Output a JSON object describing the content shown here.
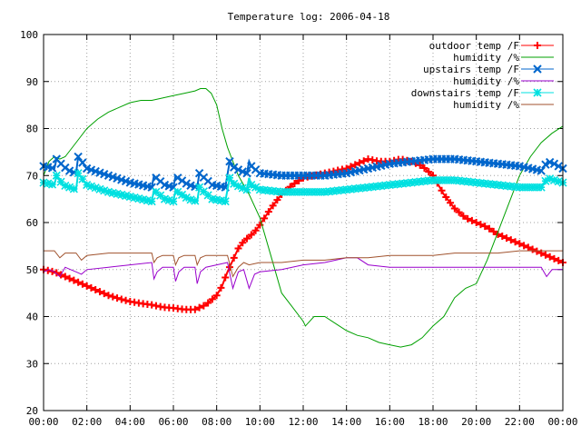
{
  "chart_data": {
    "type": "line",
    "title": "Temperature log: 2006-04-18",
    "xlabel": "",
    "ylabel": "",
    "x_unit": "hours",
    "xlim": [
      0,
      24
    ],
    "ylim": [
      20,
      100
    ],
    "xtick_values": [
      0,
      2,
      4,
      6,
      8,
      10,
      12,
      14,
      16,
      18,
      20,
      22,
      24
    ],
    "xtick_labels": [
      "00:00",
      "02:00",
      "04:00",
      "06:00",
      "08:00",
      "10:00",
      "12:00",
      "14:00",
      "16:00",
      "18:00",
      "20:00",
      "22:00",
      "00:00"
    ],
    "ytick_values": [
      20,
      30,
      40,
      50,
      60,
      70,
      80,
      90,
      100
    ],
    "ytick_labels": [
      "20",
      "30",
      "40",
      "50",
      "60",
      "70",
      "80",
      "90",
      "100"
    ],
    "grid": true,
    "legend_position": "top-right",
    "series": [
      {
        "name": "outdoor temp /F",
        "color": "#ff0000",
        "marker": "plus",
        "x": [
          0,
          0.5,
          1,
          1.5,
          2,
          2.5,
          3,
          3.5,
          4,
          4.5,
          5,
          5.5,
          6,
          6.5,
          7,
          7.5,
          8,
          8.25,
          8.5,
          8.75,
          9,
          9.25,
          9.5,
          9.75,
          10,
          10.5,
          11,
          11.5,
          12,
          12.5,
          13,
          13.5,
          14,
          14.5,
          15,
          15.5,
          16,
          16.5,
          17,
          17.5,
          18,
          18.5,
          19,
          19.5,
          20,
          20.5,
          21,
          21.5,
          22,
          22.5,
          23,
          23.5,
          24
        ],
        "y": [
          50,
          49.5,
          48.5,
          47.5,
          46.5,
          45.5,
          44.5,
          43.8,
          43.2,
          42.8,
          42.5,
          42,
          41.8,
          41.5,
          41.5,
          42.5,
          44.5,
          46.5,
          49.5,
          52,
          54.5,
          56,
          57,
          58,
          59.5,
          63,
          66,
          68,
          69.5,
          70,
          70.5,
          71,
          71.5,
          72.5,
          73.5,
          73,
          73,
          73.5,
          73,
          72,
          70,
          66,
          63,
          61,
          60,
          59,
          57.5,
          56.5,
          55.5,
          54.5,
          53.5,
          52.5,
          51.5
        ]
      },
      {
        "name": "humidity /%",
        "color": "#00a000",
        "marker": "none",
        "x": [
          0,
          0.25,
          0.5,
          0.75,
          1,
          1.5,
          2,
          2.5,
          3,
          3.5,
          4,
          4.5,
          5,
          5.5,
          6,
          6.5,
          7,
          7.25,
          7.5,
          7.75,
          8,
          8.25,
          8.5,
          8.75,
          9,
          9.5,
          10,
          10.5,
          11,
          11.5,
          12,
          12.1,
          12.5,
          13,
          13.5,
          14,
          14.5,
          15,
          15.5,
          16,
          16.5,
          17,
          17.5,
          18,
          18.5,
          19,
          19.5,
          20,
          20.5,
          21,
          21.5,
          22,
          22.5,
          23,
          23.5,
          24
        ],
        "y": [
          70,
          73,
          74,
          73.5,
          74,
          77,
          80,
          82,
          83.5,
          84.5,
          85.5,
          86,
          86,
          86.5,
          87,
          87.5,
          88,
          88.5,
          88.5,
          87.5,
          85,
          80,
          76,
          73,
          70,
          66,
          61,
          53,
          45,
          42,
          39,
          38,
          40,
          40,
          38.5,
          37,
          36,
          35.5,
          34.5,
          34,
          33.5,
          34,
          35.5,
          38,
          40,
          44,
          46,
          47,
          52,
          58,
          64,
          70,
          74,
          77,
          79,
          80.5
        ]
      },
      {
        "name": "upstairs temp /F",
        "color": "#0066cc",
        "marker": "cross",
        "x": [
          0,
          0.5,
          0.6,
          0.9,
          1.2,
          1.5,
          1.6,
          2,
          3,
          4,
          5,
          5.1,
          5.2,
          5.6,
          6,
          6.1,
          6.2,
          6.7,
          7.1,
          7.2,
          7.3,
          7.8,
          8.4,
          8.6,
          8.7,
          9.1,
          9.4,
          9.5,
          9.6,
          10,
          11,
          12,
          13,
          14,
          15,
          16,
          17,
          18,
          19,
          20,
          21,
          22,
          23,
          23.3,
          23.6,
          24
        ],
        "y": [
          72,
          71.5,
          73.5,
          72,
          71,
          70.5,
          74,
          71.5,
          70,
          68.5,
          67.5,
          70,
          69.5,
          68,
          67.5,
          70,
          69.5,
          68,
          67.5,
          70.5,
          70,
          68,
          67.5,
          73,
          72,
          71,
          70.5,
          73,
          72,
          70.5,
          70,
          70,
          70,
          70.5,
          71.5,
          72.5,
          73,
          73.5,
          73.5,
          73,
          72.5,
          72,
          71,
          73,
          72.5,
          71.5
        ]
      },
      {
        "name": "humidity /%",
        "color": "#9900cc",
        "marker": "none",
        "x": [
          0,
          0.25,
          0.5,
          0.75,
          1,
          1.25,
          1.5,
          1.75,
          2,
          3,
          4,
          5,
          5.1,
          5.25,
          5.5,
          6,
          6.1,
          6.25,
          6.5,
          7,
          7.1,
          7.25,
          7.5,
          8,
          8.5,
          8.75,
          9,
          9.25,
          9.5,
          9.75,
          10,
          11,
          12,
          13,
          14,
          14.5,
          15,
          16,
          17,
          18,
          19,
          20,
          21,
          22,
          23,
          23.25,
          23.5,
          24
        ],
        "y": [
          49.5,
          50,
          49.5,
          48.5,
          50.5,
          50,
          49.5,
          49,
          50,
          50.5,
          51,
          51.5,
          48,
          49.5,
          50.5,
          50.5,
          47.5,
          49.5,
          50.5,
          50.5,
          47,
          49.5,
          50.5,
          51,
          51.5,
          46,
          49.5,
          50,
          46,
          49,
          49.5,
          50,
          51,
          51.5,
          52.5,
          52.5,
          51,
          50.5,
          50.5,
          50.5,
          50.5,
          50.5,
          50.5,
          50.5,
          50.5,
          48.5,
          50,
          50
        ]
      },
      {
        "name": "downstairs temp /F",
        "color": "#00e0e0",
        "marker": "star",
        "x": [
          0,
          0.5,
          0.6,
          0.9,
          1.2,
          1.5,
          1.6,
          2,
          3,
          4,
          5,
          5.1,
          5.2,
          5.6,
          6,
          6.1,
          6.2,
          6.7,
          7.1,
          7.2,
          7.3,
          7.8,
          8.4,
          8.6,
          8.7,
          9.1,
          9.4,
          9.5,
          9.6,
          10,
          11,
          12,
          13,
          14,
          15,
          16,
          17,
          18,
          19,
          20,
          21,
          22,
          23,
          23.3,
          23.6,
          24
        ],
        "y": [
          68.5,
          68,
          70,
          68,
          67.5,
          67,
          70.5,
          68,
          66.5,
          65.5,
          64.5,
          67,
          66.5,
          65,
          64.5,
          67,
          66.5,
          65,
          64.5,
          67.5,
          67,
          65,
          64.5,
          69.5,
          68.5,
          67.5,
          67,
          69.5,
          68,
          67,
          66.5,
          66.5,
          66.5,
          67,
          67.5,
          68,
          68.5,
          69,
          69,
          68.5,
          68,
          67.5,
          67.5,
          69.5,
          69,
          68.5
        ]
      },
      {
        "name": "humidity /%",
        "color": "#a0522d",
        "marker": "none",
        "x": [
          0,
          0.5,
          0.75,
          1,
          1.5,
          1.75,
          2,
          3,
          4,
          5,
          5.1,
          5.25,
          5.5,
          6,
          6.1,
          6.25,
          6.5,
          7,
          7.1,
          7.25,
          7.5,
          8,
          8.5,
          8.75,
          9,
          9.25,
          9.5,
          10,
          11,
          12,
          13,
          14,
          15,
          16,
          17,
          18,
          19,
          20,
          21,
          22,
          23,
          24
        ],
        "y": [
          54,
          54,
          52.5,
          53.5,
          53.5,
          52,
          53,
          53.5,
          53.5,
          53.5,
          51.5,
          52.5,
          53,
          53,
          51,
          52.5,
          53,
          53,
          51,
          52.5,
          53,
          53,
          53,
          48.5,
          50.5,
          51.5,
          51,
          51.5,
          51.5,
          52,
          52,
          52.5,
          52.5,
          53,
          53,
          53,
          53.5,
          53.5,
          53.5,
          54,
          54,
          54
        ]
      }
    ]
  }
}
